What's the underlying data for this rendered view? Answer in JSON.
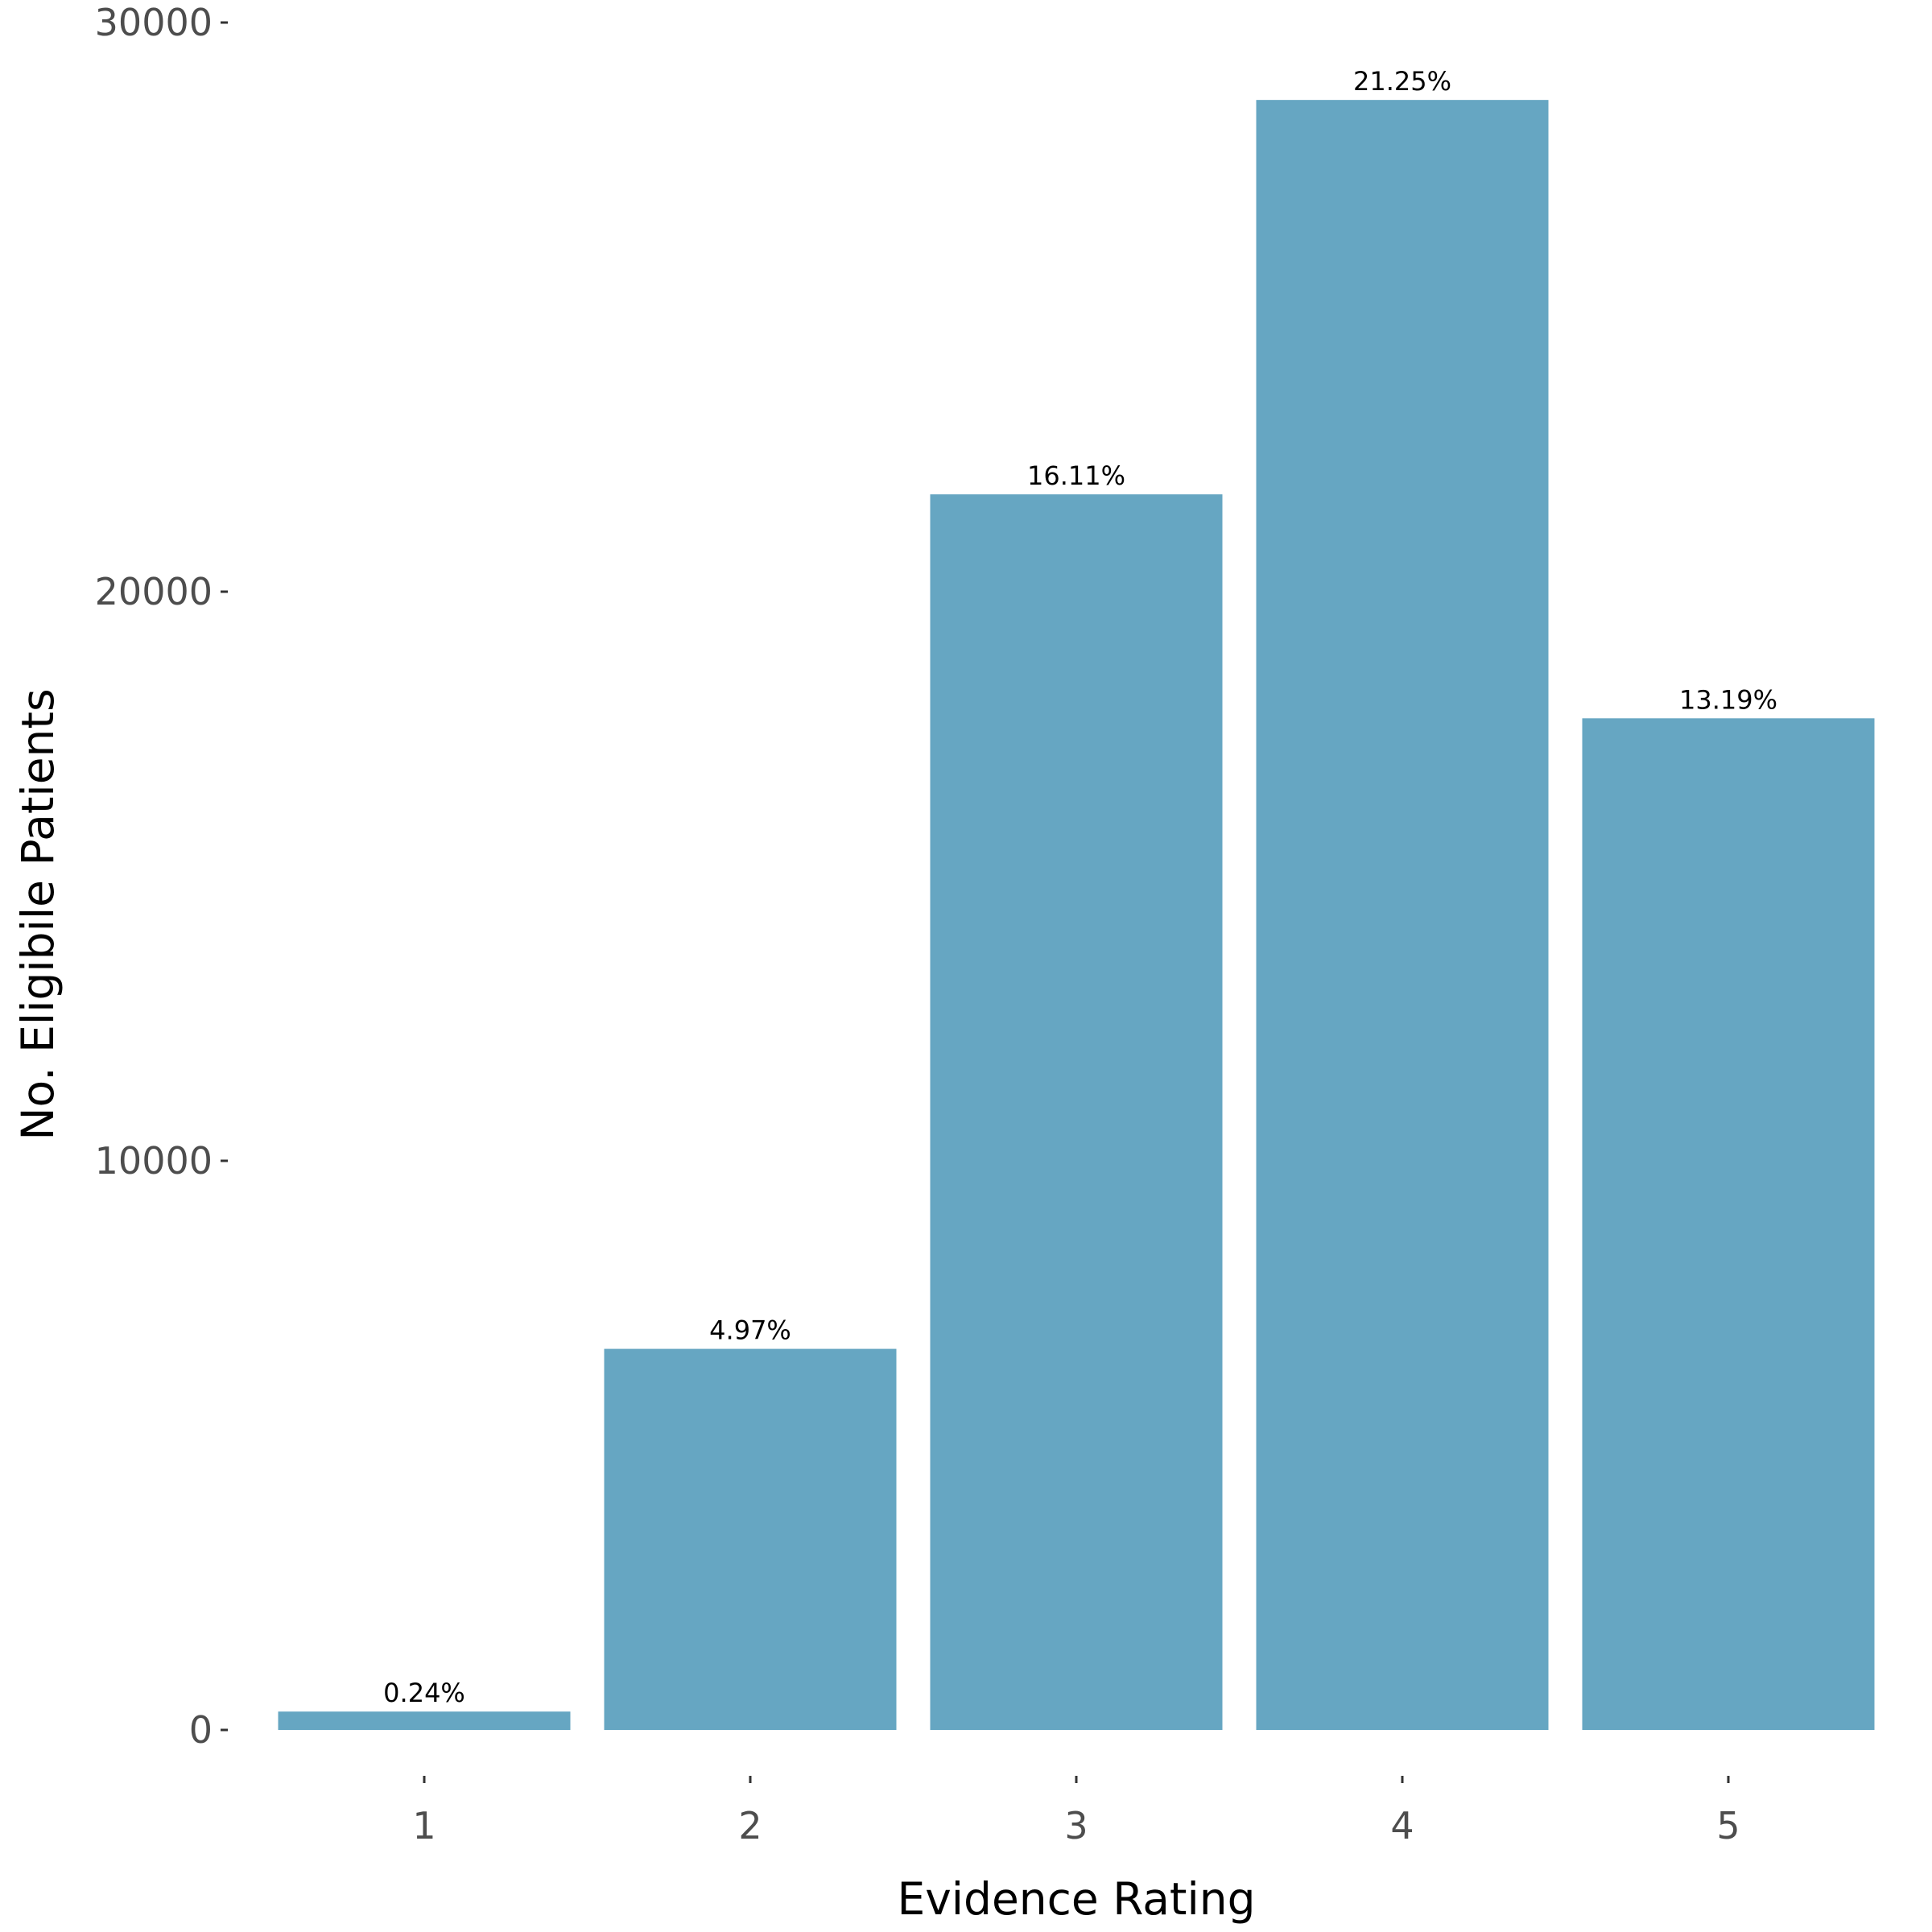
{
  "chart_data": {
    "type": "bar",
    "title": "",
    "xlabel": "Evidence Rating",
    "ylabel": "No. Eligibile Patients",
    "categories": [
      "1",
      "2",
      "3",
      "4",
      "5"
    ],
    "values": [
      323,
      6696,
      21710,
      28640,
      17775
    ],
    "data_labels": [
      "0.24%",
      "4.97%",
      "16.11%",
      "21.25%",
      "13.19%"
    ],
    "ylim": [
      0,
      30000
    ],
    "yticks": [
      0,
      10000,
      20000,
      30000
    ],
    "ytick_labels": [
      "0",
      "10000",
      "20000",
      "30000"
    ],
    "grid": false,
    "bar_color": "#66a6c2"
  }
}
